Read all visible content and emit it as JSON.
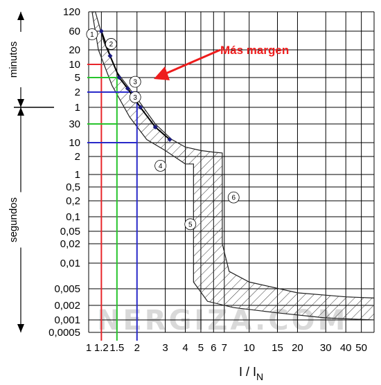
{
  "chart_data": {
    "type": "line",
    "xlabel_main": "I / I",
    "xlabel_sub": "N",
    "x_scale": "log",
    "xlim": [
      1,
      60
    ],
    "x_ticks": [
      {
        "label": "1",
        "value": 1
      },
      {
        "label": "1.2",
        "value": 1.2,
        "color": "#e8252a"
      },
      {
        "label": "1.5",
        "value": 1.5,
        "color": "#27c42c"
      },
      {
        "label": "2",
        "value": 2,
        "color": "#2929c9"
      },
      {
        "label": "3",
        "value": 3
      },
      {
        "label": "4",
        "value": 4
      },
      {
        "label": "5",
        "value": 5
      },
      {
        "label": "6",
        "value": 6
      },
      {
        "label": "7",
        "value": 7
      },
      {
        "label": "10",
        "value": 10
      },
      {
        "label": "15",
        "value": 15
      },
      {
        "label": "20",
        "value": 20
      },
      {
        "label": "30",
        "value": 30
      },
      {
        "label": "40",
        "value": 40
      },
      {
        "label": "50",
        "value": 50
      }
    ],
    "y_scale": "log",
    "y_axis_groups": [
      {
        "label": "minutos",
        "unit": "min"
      },
      {
        "label": "segundos",
        "unit": "s"
      }
    ],
    "y_ticks": [
      {
        "label": "120",
        "seconds": 7200
      },
      {
        "label": "60",
        "seconds": 3600
      },
      {
        "label": "20",
        "seconds": 1200
      },
      {
        "label": "10",
        "seconds": 600
      },
      {
        "label": "5",
        "seconds": 300
      },
      {
        "label": "2",
        "seconds": 120
      },
      {
        "label": "1",
        "seconds": 60
      },
      {
        "label": "30",
        "seconds": 30
      },
      {
        "label": "10",
        "seconds": 10
      },
      {
        "label": "2",
        "seconds": 2
      },
      {
        "label": "1",
        "seconds": 1
      },
      {
        "label": "0,5",
        "seconds": 0.5
      },
      {
        "label": "0,2",
        "seconds": 0.2
      },
      {
        "label": "0,1",
        "seconds": 0.1
      },
      {
        "label": "0,05",
        "seconds": 0.05
      },
      {
        "label": "0,02",
        "seconds": 0.02
      },
      {
        "label": "0,01",
        "seconds": 0.01
      },
      {
        "label": "0,005",
        "seconds": 0.005
      },
      {
        "label": "0,002",
        "seconds": 0.002
      },
      {
        "label": "0,001",
        "seconds": 0.001
      },
      {
        "label": "0,0005",
        "seconds": 0.0005
      }
    ],
    "band": {
      "upper": [
        [
          1.1,
          7200
        ],
        [
          1.25,
          1800
        ],
        [
          1.5,
          400
        ],
        [
          2,
          90
        ],
        [
          2.6,
          30
        ],
        [
          3.3,
          12
        ],
        [
          4,
          6
        ],
        [
          5,
          4
        ],
        [
          6,
          3.3
        ],
        [
          6.8,
          3
        ]
      ],
      "vertical_right_x": 6.8,
      "vertical_right_ylim": [
        0.02,
        3
      ],
      "lower": [
        [
          1.05,
          7200
        ],
        [
          1.15,
          1200
        ],
        [
          1.4,
          180
        ],
        [
          1.8,
          40
        ],
        [
          2.3,
          12
        ],
        [
          3,
          4
        ],
        [
          4,
          1.5
        ],
        [
          4.5,
          1.5
        ]
      ],
      "vertical_left_x": 4.5,
      "vertical_left_ylim": [
        0.006,
        1.5
      ],
      "bottom_upper": [
        [
          6.8,
          0.02
        ],
        [
          7.5,
          0.008
        ],
        [
          10,
          0.006
        ],
        [
          20,
          0.004
        ],
        [
          40,
          0.0032
        ],
        [
          60,
          0.003
        ]
      ],
      "bottom_lower": [
        [
          4.5,
          0.006
        ],
        [
          5.5,
          0.0025
        ],
        [
          8,
          0.0018
        ],
        [
          15,
          0.0014
        ],
        [
          30,
          0.0011
        ],
        [
          60,
          0.001
        ]
      ]
    },
    "series": [
      {
        "name": "",
        "color": "#000000",
        "markers": true,
        "points": [
          [
            1.2,
            3600
          ],
          [
            1.36,
            900
          ],
          [
            1.55,
            300
          ],
          [
            1.75,
            150
          ],
          [
            2.1,
            60
          ],
          [
            2.6,
            25
          ],
          [
            3.2,
            12
          ]
        ]
      }
    ],
    "reference_lines": [
      {
        "x": 1.2,
        "y_seconds": 600,
        "color": "#e8252a",
        "second_y_seconds": 120
      },
      {
        "x": 1.5,
        "y_seconds": 300,
        "color": "#27c42c",
        "second_y_seconds": 30
      },
      {
        "x": 2,
        "y_seconds": 120,
        "color": "#2929c9",
        "second_y_seconds": 10
      }
    ],
    "circle_labels": [
      {
        "text": "1",
        "x": 1.05,
        "y_seconds": 3000
      },
      {
        "text": "2",
        "x": 1.38,
        "y_seconds": 1700
      },
      {
        "text": "3",
        "x": 1.95,
        "y_seconds": 230
      },
      {
        "text": "3",
        "x": 1.95,
        "y_seconds": 95
      },
      {
        "text": "4",
        "x": 2.8,
        "y_seconds": 1.4
      },
      {
        "text": "5",
        "x": 4.3,
        "y_seconds": 0.07
      },
      {
        "text": "6",
        "x": 8,
        "y_seconds": 0.25
      }
    ],
    "annotation": {
      "text": "Más margen",
      "color": "#ee1c1c"
    },
    "watermark": "NERGIZA.COM"
  }
}
